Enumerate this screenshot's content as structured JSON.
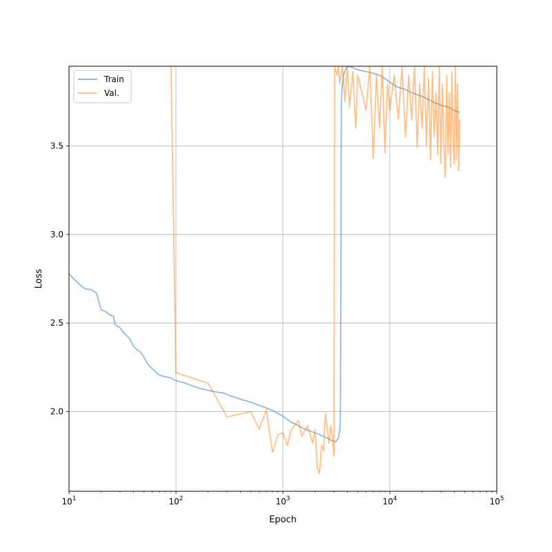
{
  "chart_data": {
    "type": "line",
    "xlabel": "Epoch",
    "ylabel": "Loss",
    "xscale": "log",
    "xlim": [
      10,
      100000
    ],
    "ylim": [
      1.55,
      3.95
    ],
    "grid": true,
    "legend_position": "upper-left",
    "x_ticks": [
      {
        "value": 10,
        "base": "10",
        "exp": "1"
      },
      {
        "value": 100,
        "base": "10",
        "exp": "2"
      },
      {
        "value": 1000,
        "base": "10",
        "exp": "3"
      },
      {
        "value": 10000,
        "base": "10",
        "exp": "4"
      },
      {
        "value": 100000,
        "base": "10",
        "exp": "5"
      }
    ],
    "y_ticks": [
      {
        "value": 2.0,
        "label": "2.0"
      },
      {
        "value": 2.5,
        "label": "2.5"
      },
      {
        "value": 3.0,
        "label": "3.0"
      },
      {
        "value": 3.5,
        "label": "3.5"
      }
    ],
    "series": [
      {
        "name": "Train",
        "color": "#1f77b4",
        "opacity": 0.5,
        "points": [
          [
            10,
            2.78
          ],
          [
            11,
            2.75
          ],
          [
            12,
            2.73
          ],
          [
            13,
            2.71
          ],
          [
            14,
            2.695
          ],
          [
            15,
            2.69
          ],
          [
            16,
            2.69
          ],
          [
            17,
            2.68
          ],
          [
            18,
            2.67
          ],
          [
            20,
            2.575
          ],
          [
            22,
            2.565
          ],
          [
            24,
            2.545
          ],
          [
            26,
            2.54
          ],
          [
            27,
            2.49
          ],
          [
            30,
            2.475
          ],
          [
            32,
            2.45
          ],
          [
            35,
            2.425
          ],
          [
            37,
            2.41
          ],
          [
            40,
            2.37
          ],
          [
            43,
            2.35
          ],
          [
            46,
            2.34
          ],
          [
            50,
            2.31
          ],
          [
            54,
            2.27
          ],
          [
            58,
            2.25
          ],
          [
            62,
            2.235
          ],
          [
            68,
            2.21
          ],
          [
            75,
            2.2
          ],
          [
            82,
            2.195
          ],
          [
            90,
            2.19
          ],
          [
            95,
            2.18
          ],
          [
            100,
            2.175
          ],
          [
            115,
            2.165
          ],
          [
            130,
            2.155
          ],
          [
            150,
            2.14
          ],
          [
            170,
            2.13
          ],
          [
            200,
            2.12
          ],
          [
            240,
            2.11
          ],
          [
            280,
            2.105
          ],
          [
            320,
            2.09
          ],
          [
            360,
            2.08
          ],
          [
            400,
            2.07
          ],
          [
            460,
            2.06
          ],
          [
            520,
            2.05
          ],
          [
            600,
            2.035
          ],
          [
            700,
            2.02
          ],
          [
            800,
            2.005
          ],
          [
            900,
            1.99
          ],
          [
            1000,
            1.975
          ],
          [
            1100,
            1.955
          ],
          [
            1200,
            1.94
          ],
          [
            1300,
            1.93
          ],
          [
            1500,
            1.91
          ],
          [
            1700,
            1.895
          ],
          [
            2000,
            1.88
          ],
          [
            2300,
            1.865
          ],
          [
            2600,
            1.85
          ],
          [
            2900,
            1.835
          ],
          [
            3100,
            1.83
          ],
          [
            3300,
            1.85
          ],
          [
            3400,
            1.89
          ],
          [
            3440,
            1.95
          ],
          [
            3460,
            2.1
          ],
          [
            3480,
            2.6
          ],
          [
            3500,
            3.3
          ],
          [
            3520,
            3.75
          ],
          [
            3600,
            3.85
          ],
          [
            3700,
            3.9
          ],
          [
            3900,
            3.94
          ],
          [
            4200,
            3.95
          ],
          [
            5000,
            3.93
          ],
          [
            6000,
            3.92
          ],
          [
            7000,
            3.91
          ],
          [
            8000,
            3.9
          ],
          [
            9000,
            3.88
          ],
          [
            10000,
            3.86
          ],
          [
            12000,
            3.83
          ],
          [
            14000,
            3.82
          ],
          [
            16000,
            3.8
          ],
          [
            20000,
            3.78
          ],
          [
            25000,
            3.75
          ],
          [
            30000,
            3.73
          ],
          [
            35000,
            3.72
          ],
          [
            40000,
            3.7
          ],
          [
            45000,
            3.69
          ]
        ]
      },
      {
        "name": "Val.",
        "color": "#ff7f0e",
        "opacity": 0.5,
        "points": [
          [
            90,
            3.95
          ],
          [
            100,
            2.22
          ],
          [
            200,
            2.16
          ],
          [
            300,
            1.97
          ],
          [
            500,
            2.0
          ],
          [
            600,
            1.9
          ],
          [
            700,
            2.01
          ],
          [
            800,
            1.77
          ],
          [
            900,
            1.87
          ],
          [
            1000,
            1.88
          ],
          [
            1100,
            1.81
          ],
          [
            1200,
            1.9
          ],
          [
            1400,
            1.95
          ],
          [
            1500,
            1.86
          ],
          [
            1700,
            1.92
          ],
          [
            1900,
            1.82
          ],
          [
            2000,
            1.9
          ],
          [
            2100,
            1.68
          ],
          [
            2200,
            1.65
          ],
          [
            2300,
            1.81
          ],
          [
            2400,
            1.78
          ],
          [
            2500,
            1.99
          ],
          [
            2700,
            1.82
          ],
          [
            2800,
            1.92
          ],
          [
            2900,
            1.86
          ],
          [
            3000,
            1.75
          ],
          [
            3050,
            3.95
          ],
          [
            3200,
            3.9
          ],
          [
            3300,
            3.95
          ],
          [
            3400,
            3.85
          ],
          [
            3600,
            3.95
          ],
          [
            3800,
            3.75
          ],
          [
            4000,
            3.94
          ],
          [
            4200,
            3.72
          ],
          [
            4500,
            3.92
          ],
          [
            4800,
            3.6
          ],
          [
            5000,
            3.9
          ],
          [
            5500,
            3.8
          ],
          [
            6000,
            3.7
          ],
          [
            6500,
            3.95
          ],
          [
            7000,
            3.43
          ],
          [
            7500,
            3.9
          ],
          [
            8000,
            3.6
          ],
          [
            8500,
            3.95
          ],
          [
            9000,
            3.46
          ],
          [
            9500,
            3.85
          ],
          [
            10000,
            3.7
          ],
          [
            11000,
            3.9
          ],
          [
            12000,
            3.65
          ],
          [
            13000,
            3.95
          ],
          [
            14000,
            3.55
          ],
          [
            15000,
            3.9
          ],
          [
            16000,
            3.65
          ],
          [
            17000,
            3.95
          ],
          [
            18000,
            3.49
          ],
          [
            19000,
            3.85
          ],
          [
            20000,
            3.6
          ],
          [
            21000,
            3.95
          ],
          [
            22000,
            3.5
          ],
          [
            23000,
            3.88
          ],
          [
            24000,
            3.42
          ],
          [
            25000,
            3.92
          ],
          [
            26000,
            3.55
          ],
          [
            27000,
            3.8
          ],
          [
            28000,
            3.45
          ],
          [
            29000,
            3.95
          ],
          [
            30000,
            3.4
          ],
          [
            31000,
            3.85
          ],
          [
            32000,
            3.5
          ],
          [
            33000,
            3.32
          ],
          [
            34000,
            3.9
          ],
          [
            35000,
            3.45
          ],
          [
            36000,
            3.8
          ],
          [
            37000,
            3.38
          ],
          [
            38000,
            3.92
          ],
          [
            39000,
            3.55
          ],
          [
            40000,
            3.4
          ],
          [
            41000,
            3.95
          ],
          [
            42000,
            3.42
          ],
          [
            43000,
            3.85
          ],
          [
            44000,
            3.36
          ],
          [
            45000,
            3.65
          ]
        ]
      }
    ]
  }
}
